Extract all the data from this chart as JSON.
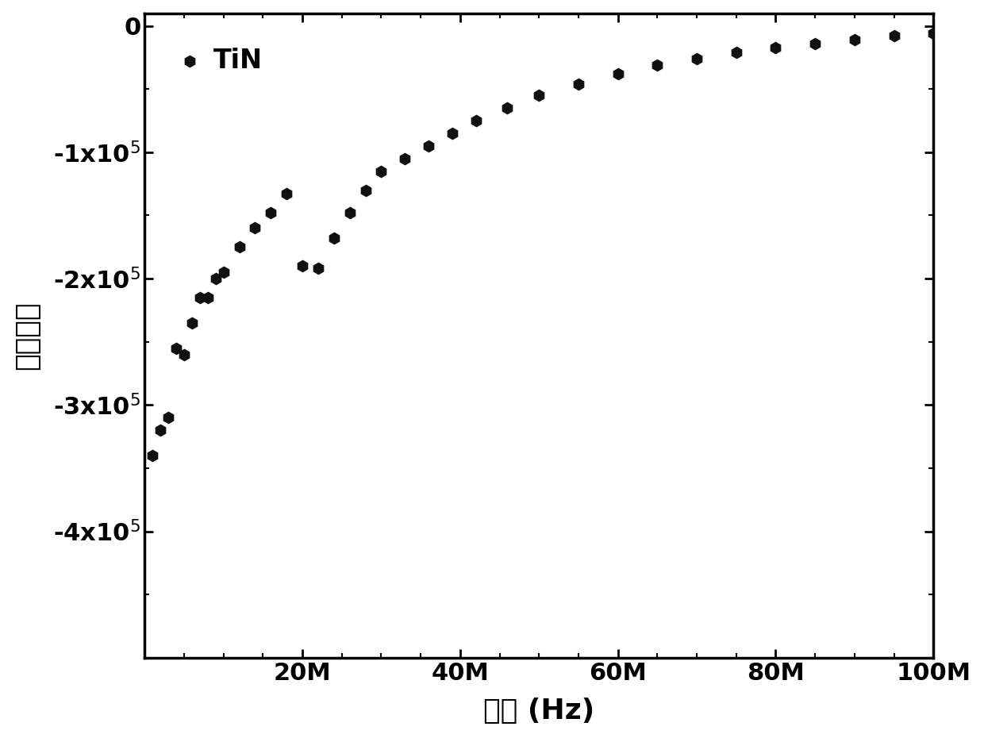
{
  "x_data": [
    1000000.0,
    2000000.0,
    3000000.0,
    4000000.0,
    5000000.0,
    6000000.0,
    7000000.0,
    8000000.0,
    9000000.0,
    10000000.0,
    12000000.0,
    14000000.0,
    16000000.0,
    18000000.0,
    20000000.0,
    22000000.0,
    24000000.0,
    26000000.0,
    28000000.0,
    30000000.0,
    33000000.0,
    36000000.0,
    39000000.0,
    42000000.0,
    46000000.0,
    50000000.0,
    55000000.0,
    60000000.0,
    65000000.0,
    70000000.0,
    75000000.0,
    80000000.0,
    85000000.0,
    90000000.0,
    95000000.0,
    100000000.0
  ],
  "y_data": [
    -340000,
    -320000,
    -310000,
    -255000,
    -260000,
    -235000,
    -215000,
    -215000,
    -200000,
    -195000,
    -175000,
    -160000,
    -148000,
    -133000,
    -190000,
    -192000,
    -168000,
    -148000,
    -130000,
    -115000,
    -105000,
    -95000,
    -85000,
    -75000,
    -65000,
    -55000,
    -46000,
    -38000,
    -31000,
    -26000,
    -21000,
    -17000,
    -14000,
    -11000,
    -8000,
    -6000
  ],
  "marker": "h",
  "marker_color": "#111111",
  "marker_size": 130,
  "legend_label": "TiN",
  "xlabel": "频率 (Hz)",
  "ylabel": "介电常数",
  "xlim": [
    0,
    100000000.0
  ],
  "ylim": [
    -500000.0,
    10000.0
  ],
  "yticks": [
    0,
    -100000.0,
    -200000.0,
    -300000.0,
    -400000.0
  ],
  "ytick_labels": [
    "0",
    "-1x10$^5$",
    "-2x10$^5$",
    "-3x10$^5$",
    "-4x10$^5$"
  ],
  "xticks": [
    0,
    20000000.0,
    40000000.0,
    60000000.0,
    80000000.0,
    100000000.0
  ],
  "xtick_labels": [
    "",
    "20M",
    "40M",
    "60M",
    "80M",
    "100M"
  ],
  "background_color": "#ffffff",
  "axes_linewidth": 2.5,
  "tick_fontsize": 22,
  "label_fontsize": 26,
  "legend_fontsize": 24
}
